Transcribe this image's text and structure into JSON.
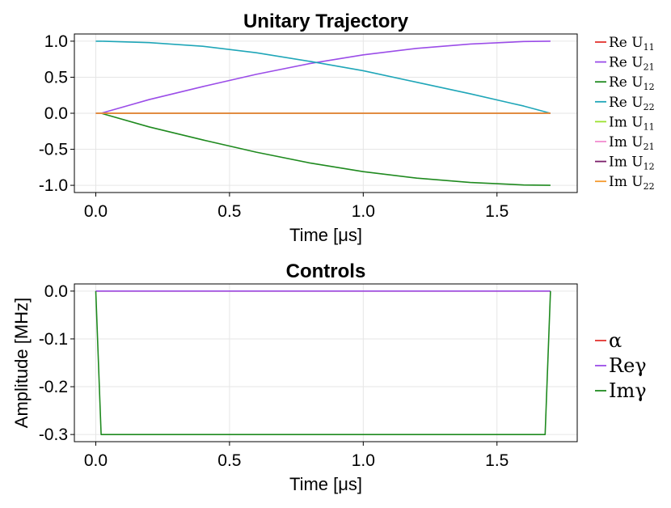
{
  "chart_data": [
    {
      "type": "line",
      "title": "Unitary Trajectory",
      "xlabel": "Time [μs]",
      "ylabel": "",
      "xlim": [
        -0.08,
        1.8
      ],
      "ylim": [
        -1.1,
        1.1
      ],
      "xticks": [
        0.0,
        0.5,
        1.0,
        1.5
      ],
      "xtick_labels": [
        "0.0",
        "0.5",
        "1.0",
        "1.5"
      ],
      "yticks": [
        1.0,
        0.5,
        0.0,
        -0.5,
        -1.0
      ],
      "ytick_labels": [
        "1.0",
        "0.5",
        "0.0",
        "-0.5",
        "-1.0"
      ],
      "grid": true,
      "legend_position": "right",
      "series": [
        {
          "name": "Re U₁₁",
          "label_main": "Re U",
          "label_sub": "11",
          "color": "#e3342f",
          "x": [
            0,
            1.7
          ],
          "y": [
            0,
            0
          ]
        },
        {
          "name": "Re U₂₁",
          "label_main": "Re U",
          "label_sub": "21",
          "color": "#9b4de8",
          "x": [
            0.02,
            0.2,
            0.4,
            0.6,
            0.8,
            1.0,
            1.2,
            1.4,
            1.6,
            1.7
          ],
          "y": [
            0.0,
            0.19,
            0.37,
            0.54,
            0.69,
            0.81,
            0.9,
            0.96,
            0.995,
            1.0
          ]
        },
        {
          "name": "Re U₁₂",
          "label_main": "Re U",
          "label_sub": "12",
          "color": "#1f8a1f",
          "x": [
            0.02,
            0.2,
            0.4,
            0.6,
            0.8,
            1.0,
            1.2,
            1.4,
            1.6,
            1.7
          ],
          "y": [
            0.0,
            -0.19,
            -0.37,
            -0.54,
            -0.69,
            -0.81,
            -0.9,
            -0.96,
            -0.995,
            -1.0
          ]
        },
        {
          "name": "Re U₂₂",
          "label_main": "Re U",
          "label_sub": "22",
          "color": "#1fa6b8",
          "x": [
            0.0,
            0.02,
            0.2,
            0.4,
            0.6,
            0.8,
            1.0,
            1.2,
            1.4,
            1.6,
            1.7
          ],
          "y": [
            1.0,
            1.0,
            0.98,
            0.93,
            0.84,
            0.72,
            0.59,
            0.43,
            0.27,
            0.1,
            0.0
          ]
        },
        {
          "name": "Im U₁₁",
          "label_main": "Im U",
          "label_sub": "11",
          "color": "#9be22e",
          "x": [
            0,
            1.7
          ],
          "y": [
            0,
            0
          ]
        },
        {
          "name": "Im U₂₁",
          "label_main": "Im U",
          "label_sub": "21",
          "color": "#f28cd0",
          "x": [
            0,
            1.7
          ],
          "y": [
            0,
            0
          ]
        },
        {
          "name": "Im U₁₂",
          "label_main": "Im U",
          "label_sub": "12",
          "color": "#7b1f6b",
          "x": [
            0,
            1.7
          ],
          "y": [
            0,
            0
          ]
        },
        {
          "name": "Im U₂₂",
          "label_main": "Im U",
          "label_sub": "22",
          "color": "#f59a2e",
          "x": [
            0,
            1.7
          ],
          "y": [
            0,
            0
          ]
        }
      ]
    },
    {
      "type": "line",
      "title": "Controls",
      "xlabel": "Time [μs]",
      "ylabel": "Amplitude [MHz]",
      "xlim": [
        -0.08,
        1.8
      ],
      "ylim": [
        -0.315,
        0.015
      ],
      "xticks": [
        0.0,
        0.5,
        1.0,
        1.5
      ],
      "xtick_labels": [
        "0.0",
        "0.5",
        "1.0",
        "1.5"
      ],
      "yticks": [
        0.0,
        -0.1,
        -0.2,
        -0.3
      ],
      "ytick_labels": [
        "0.0",
        "-0.1",
        "-0.2",
        "-0.3"
      ],
      "grid": true,
      "legend_position": "right",
      "series": [
        {
          "name": "α",
          "label_main": "α",
          "label_sub": "",
          "color": "#e3342f",
          "x": [
            0,
            1.7
          ],
          "y": [
            0,
            0
          ]
        },
        {
          "name": "Reγ",
          "label_main": "Reγ",
          "label_sub": "",
          "color": "#9b4de8",
          "x": [
            0,
            1.7
          ],
          "y": [
            0,
            0
          ]
        },
        {
          "name": "Imγ",
          "label_main": "Imγ",
          "label_sub": "",
          "color": "#1f8a1f",
          "x": [
            0.0,
            0.02,
            1.68,
            1.7
          ],
          "y": [
            0.0,
            -0.3,
            -0.3,
            0.0
          ]
        }
      ]
    }
  ]
}
